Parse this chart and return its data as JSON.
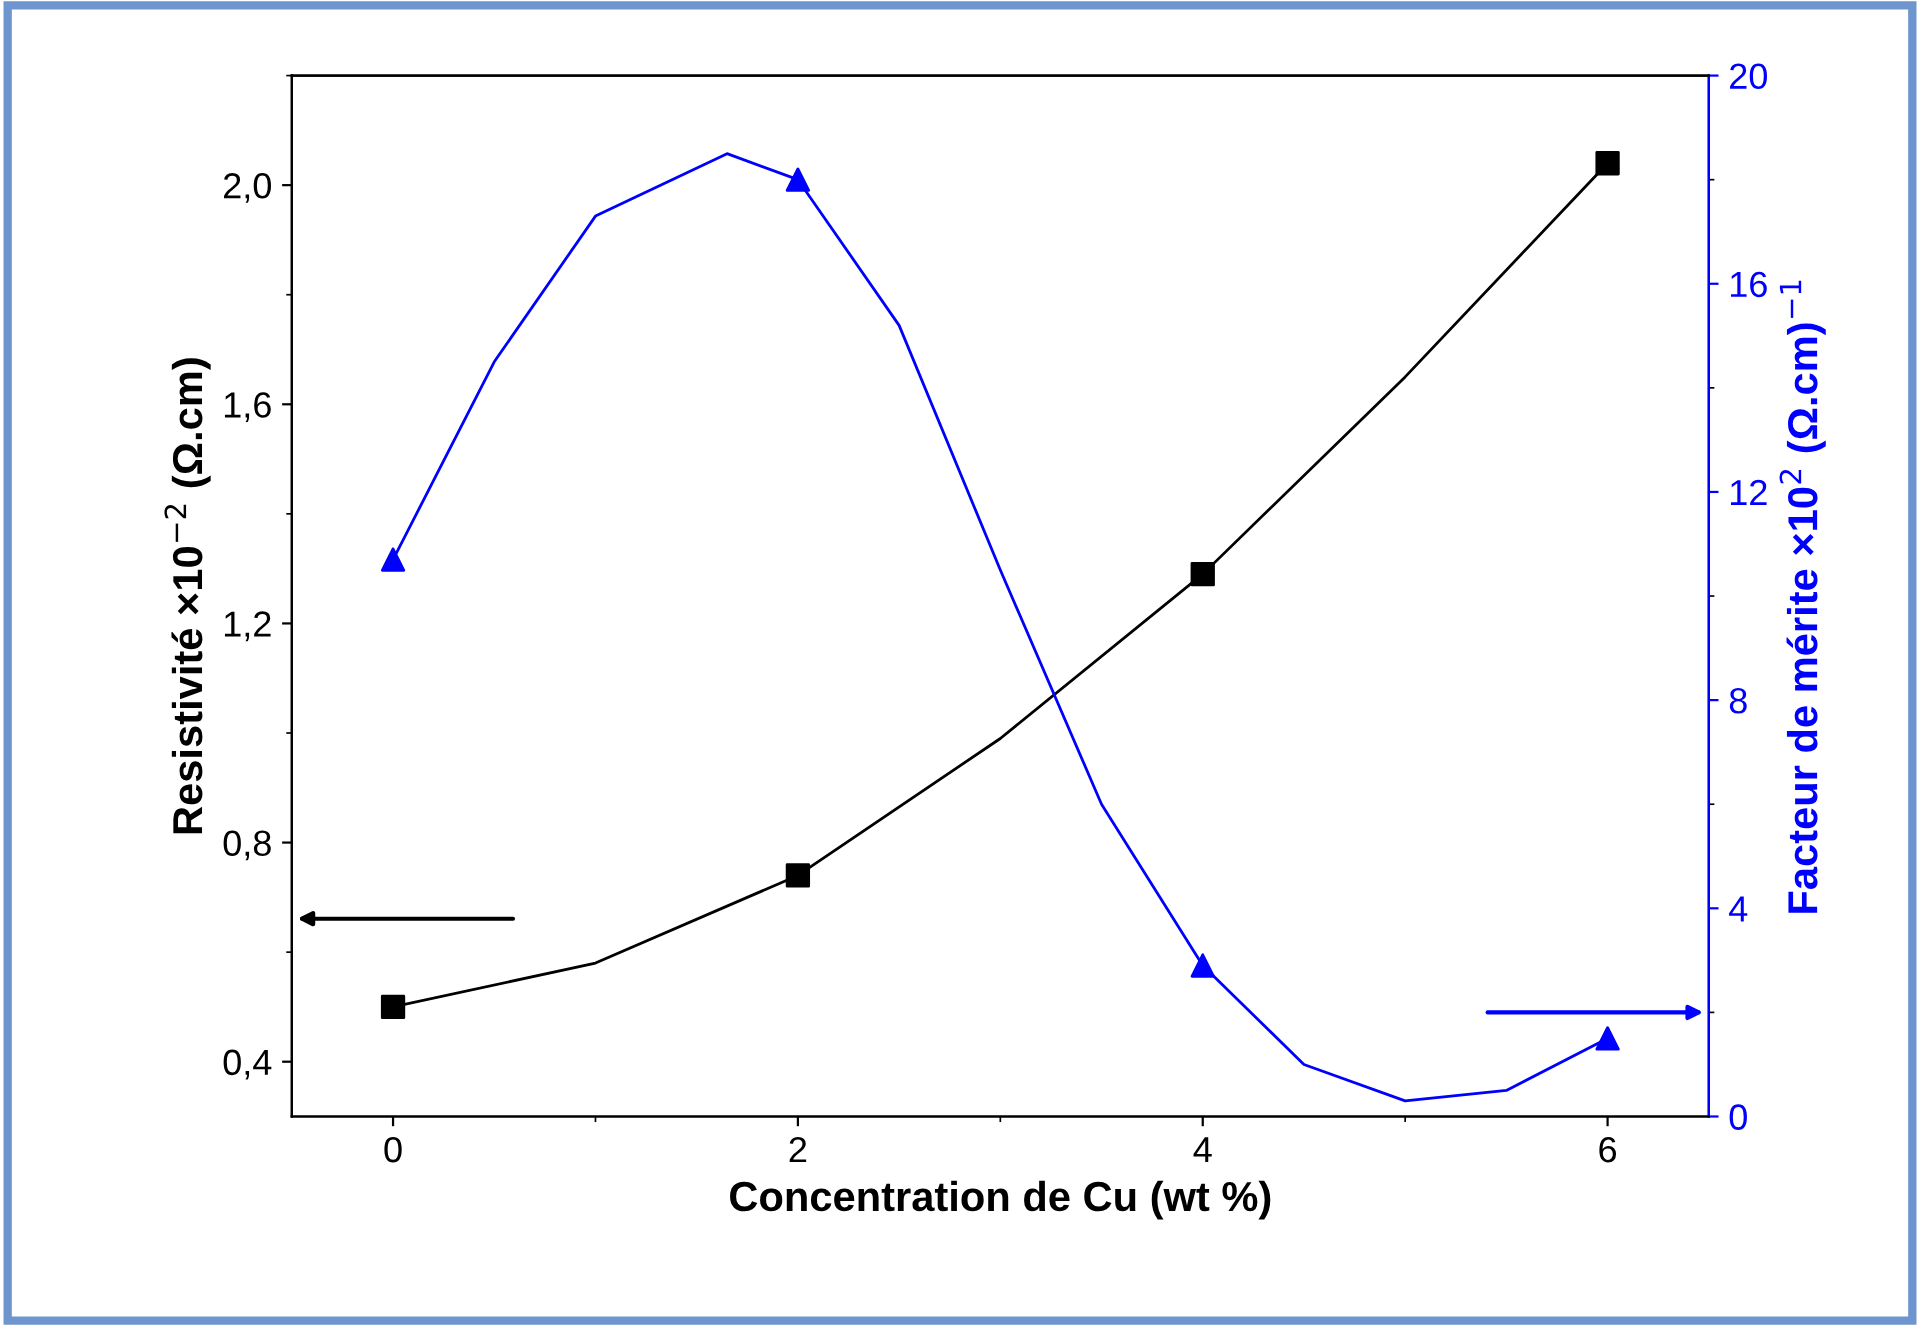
{
  "chart_data": {
    "type": "scatter",
    "xlabel": "Concentration de Cu (wt %)",
    "ylabel": "Resistivité ×10$^{−2}$ (Ω.cm)",
    "y2label": "Facteur de mérite ×10$^{2}$ (Ω.cm)$^{−1}$",
    "xlim": [
      -0.5,
      6.5
    ],
    "xticks": [
      0,
      2,
      4,
      6
    ],
    "ylim": [
      0.3,
      2.2
    ],
    "yticks": [
      {
        "value": 0.4,
        "label": "0,4"
      },
      {
        "value": 0.8,
        "label": "0,8"
      },
      {
        "value": 1.2,
        "label": "1,2"
      },
      {
        "value": 1.6,
        "label": "1,6"
      },
      {
        "value": 2.0,
        "label": "2,0"
      }
    ],
    "y2lim": [
      0,
      20
    ],
    "y2ticks": [
      0,
      4,
      8,
      12,
      16,
      20
    ],
    "grid": false,
    "legend": false,
    "series": [
      {
        "type": "line",
        "color": "#000000",
        "x": [
          0,
          1,
          2,
          3,
          4,
          5,
          6
        ],
        "values": [
          0.5,
          0.58,
          0.74,
          0.99,
          1.29,
          1.65,
          2.04
        ],
        "marker": "none"
      },
      {
        "color": "#000000",
        "x": [
          0,
          2,
          4,
          6
        ],
        "values": [
          0.5,
          0.74,
          1.29,
          2.04
        ],
        "marker": "square"
      },
      {
        "type": "line",
        "color": "#0000ff",
        "axis": "y2",
        "x": [
          0,
          0.5,
          1,
          1.65,
          2,
          2.5,
          3,
          3.5,
          4,
          4.5,
          5,
          5.5,
          6
        ],
        "values": [
          10.7,
          14.5,
          17.3,
          18.5,
          18.0,
          15.2,
          10.5,
          6.0,
          2.9,
          1.0,
          0.3,
          0.5,
          1.5
        ],
        "marker": "none"
      },
      {
        "color": "#0000ff",
        "axis": "y2",
        "x": [
          0,
          2,
          4,
          6
        ],
        "values": [
          10.7,
          18.0,
          2.9,
          1.5
        ],
        "marker": "triangle"
      }
    ]
  }
}
